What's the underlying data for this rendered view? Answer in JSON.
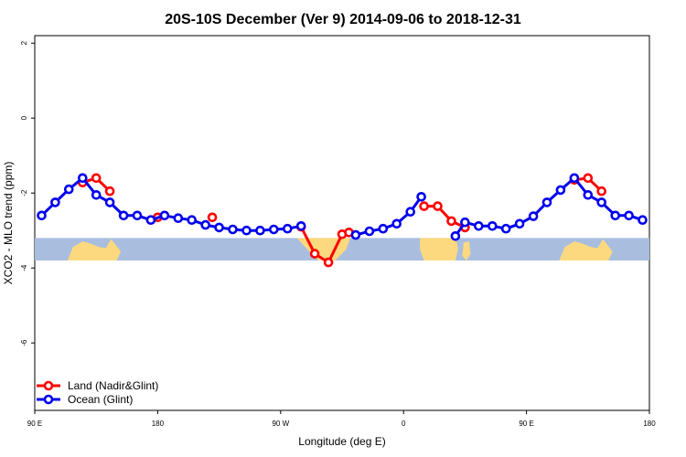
{
  "chart_data": {
    "type": "line",
    "title": "20S-10S December (Ver 9)   2014-09-06 to 2018-12-31",
    "xlabel": "Longitude (deg E)",
    "ylabel": "XCO2 - MLO trend (ppm)",
    "xlim": [
      90,
      540
    ],
    "ylim": [
      -7.8,
      2.2
    ],
    "xticks": [
      {
        "value": 90,
        "label": "90 E"
      },
      {
        "value": 180,
        "label": "180"
      },
      {
        "value": 270,
        "label": "90 W"
      },
      {
        "value": 360,
        "label": "0"
      },
      {
        "value": 450,
        "label": "90 E"
      },
      {
        "value": 540,
        "label": "180"
      }
    ],
    "yticks": [
      {
        "value": 2,
        "label": "2"
      },
      {
        "value": 0,
        "label": "0"
      },
      {
        "value": -2,
        "label": "-2"
      },
      {
        "value": -4,
        "label": "-4"
      },
      {
        "value": -6,
        "label": "-6"
      }
    ],
    "grid": false,
    "legend_position": "bottom-left",
    "colors": {
      "land": "#ff0000",
      "ocean": "#0000ee",
      "map_ocean": "#a9bedf",
      "map_land": "#fcd97f"
    },
    "map_band": {
      "ymin": -3.8,
      "ymax": -3.2
    },
    "series": [
      {
        "name": "Land (Nadir&Glint)",
        "key": "land",
        "segments": [
          [
            [
              125,
              -1.72
            ],
            [
              135,
              -1.6
            ],
            [
              145,
              -1.95
            ]
          ],
          [
            [
              180,
              -2.65
            ]
          ],
          [
            [
              220,
              -2.65
            ]
          ],
          [
            [
              285,
              -2.9
            ],
            [
              295,
              -3.62
            ],
            [
              305,
              -3.85
            ],
            [
              315,
              -3.1
            ],
            [
              320,
              -3.05
            ]
          ],
          [
            [
              375,
              -2.35
            ],
            [
              385,
              -2.35
            ],
            [
              395,
              -2.75
            ],
            [
              405,
              -2.92
            ]
          ],
          [
            [
              485,
              -1.65
            ],
            [
              495,
              -1.6
            ],
            [
              505,
              -1.95
            ]
          ]
        ]
      },
      {
        "name": "Ocean (Glint)",
        "key": "ocean",
        "segments": [
          [
            [
              95,
              -2.6
            ],
            [
              105,
              -2.25
            ],
            [
              115,
              -1.9
            ],
            [
              125,
              -1.6
            ],
            [
              135,
              -2.05
            ],
            [
              145,
              -2.25
            ],
            [
              155,
              -2.6
            ],
            [
              165,
              -2.6
            ],
            [
              175,
              -2.72
            ],
            [
              185,
              -2.6
            ],
            [
              195,
              -2.67
            ],
            [
              205,
              -2.72
            ],
            [
              215,
              -2.85
            ],
            [
              225,
              -2.92
            ],
            [
              235,
              -2.97
            ],
            [
              245,
              -3.0
            ],
            [
              255,
              -3.0
            ],
            [
              265,
              -2.97
            ],
            [
              275,
              -2.95
            ],
            [
              285,
              -2.88
            ]
          ],
          [
            [
              325,
              -3.12
            ],
            [
              335,
              -3.02
            ],
            [
              345,
              -2.95
            ],
            [
              355,
              -2.82
            ],
            [
              365,
              -2.5
            ],
            [
              373,
              -2.1
            ]
          ],
          [
            [
              398,
              -3.15
            ],
            [
              405,
              -2.78
            ],
            [
              415,
              -2.88
            ],
            [
              425,
              -2.88
            ],
            [
              435,
              -2.95
            ],
            [
              445,
              -2.82
            ],
            [
              455,
              -2.62
            ],
            [
              465,
              -2.25
            ],
            [
              475,
              -1.92
            ],
            [
              485,
              -1.6
            ],
            [
              495,
              -2.05
            ],
            [
              505,
              -2.25
            ],
            [
              515,
              -2.6
            ],
            [
              525,
              -2.6
            ],
            [
              535,
              -2.72
            ]
          ]
        ]
      }
    ]
  }
}
